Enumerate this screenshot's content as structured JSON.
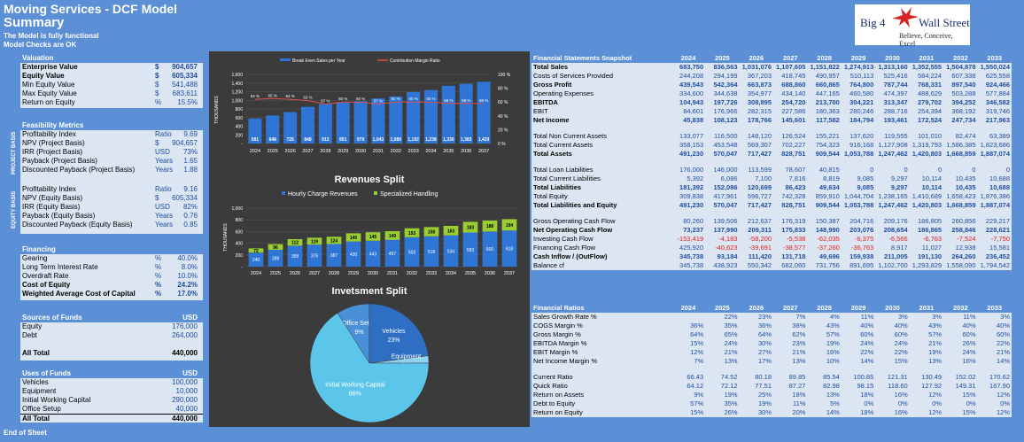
{
  "header": {
    "title": "Moving Services - DCF Model",
    "subtitle": "Summary",
    "note1": "The Model is fully functional",
    "note2": "Model Checks are OK"
  },
  "logo": {
    "left": "Big 4",
    "right": "Wall Street",
    "tagline": "Believe, Conceive, Excel"
  },
  "footer": "End of Sheet",
  "valuation": {
    "title": "Valuation",
    "rows": [
      {
        "label": "Enterprise Value",
        "unit": "$",
        "value": "904,657",
        "bold": true
      },
      {
        "label": "Equity Value",
        "unit": "$",
        "value": "605,334",
        "bold": true
      },
      {
        "label": "Min Equity Value",
        "unit": "$",
        "value": "541,488",
        "bold": false
      },
      {
        "label": "Max Equity Value",
        "unit": "$",
        "value": "683,611",
        "bold": false
      },
      {
        "label": "Return on Equity",
        "unit": "%",
        "value": "15.5%",
        "bold": false
      }
    ]
  },
  "feasibility": {
    "title": "Feasibility Metrics",
    "project_label": "PROJECT BASIS",
    "equity_label": "EQUITY BASIS",
    "project": [
      {
        "label": "Profitability Index",
        "unit": "Ratio",
        "value": "9.69"
      },
      {
        "label": "NPV (Project Basis)",
        "unit": "$",
        "value": "904,657"
      },
      {
        "label": "IRR (Project Basis)",
        "unit": "USD",
        "value": "73%"
      },
      {
        "label": "Payback  (Project Basis)",
        "unit": "Years",
        "value": "1.65"
      },
      {
        "label": "Discounted Payback  (Project Basis)",
        "unit": "Years",
        "value": "1.88"
      }
    ],
    "equity": [
      {
        "label": "Profitability Index",
        "unit": "Ratio",
        "value": "9.16"
      },
      {
        "label": "NPV (Equity Basis)",
        "unit": "$",
        "value": "605,334"
      },
      {
        "label": "IRR (Equity Basis)",
        "unit": "USD",
        "value": "82%"
      },
      {
        "label": "Payback  (Equity Basis)",
        "unit": "Years",
        "value": "0.76"
      },
      {
        "label": "Discounted Payback  (Equity Basis)",
        "unit": "Years",
        "value": "0.85"
      }
    ]
  },
  "financing": {
    "title": "Financing",
    "rows": [
      {
        "label": "Gearing",
        "unit": "%",
        "value": "40.0%",
        "bold": false
      },
      {
        "label": "Long Term Interest Rate",
        "unit": "%",
        "value": "8.0%",
        "bold": false
      },
      {
        "label": "Overdraft Rate",
        "unit": "%",
        "value": "10.0%",
        "bold": false
      },
      {
        "label": "Cost of Equity",
        "unit": "%",
        "value": "24.2%",
        "bold": true
      },
      {
        "label": "Weighted Average Cost of Capital",
        "unit": "%",
        "value": "17.0%",
        "bold": true
      }
    ]
  },
  "sources": {
    "title": "Sources of Funds",
    "currency": "USD",
    "rows": [
      {
        "label": "Equity",
        "value": "176,000"
      },
      {
        "label": "Debt",
        "value": "264,000"
      }
    ],
    "total_label": "All Total",
    "total": "440,000"
  },
  "uses": {
    "title": "Uses of Funds",
    "currency": "USD",
    "rows": [
      {
        "label": "Vehicles",
        "value": "100,000"
      },
      {
        "label": "Equipment",
        "value": "10,000"
      },
      {
        "label": "Initial Working Capital",
        "value": "290,000"
      },
      {
        "label": "Office Setup",
        "value": "40,000"
      }
    ],
    "total_label": "All Total",
    "total": "440,000"
  },
  "colors": {
    "accent": "#5b8fd6",
    "panel": "#dce6f3",
    "dark": "#3b3b3b",
    "bar_blue": "#2e75d6",
    "bar_green": "#9acd32",
    "line_red": "#e05050"
  },
  "chart_data": [
    {
      "type": "bar",
      "title": "",
      "ylabel": "THOUSANDS",
      "categories": [
        "2024",
        "2025",
        "2026",
        "2027",
        "2028",
        "2029",
        "2030",
        "2031",
        "2032",
        "2033",
        "2034",
        "2035",
        "2036",
        "2037"
      ],
      "series": [
        {
          "name": "Break Even Sales per Year",
          "values": [
            581,
            648,
            726,
            848,
            913,
            951,
            979,
            1043,
            1089,
            1192,
            1238,
            1336,
            1383,
            1429
          ],
          "labels": [
            "581",
            "648",
            "726",
            "848",
            "913",
            "951",
            "979",
            "1,043",
            "1,089",
            "1,192",
            "1,238",
            "1,336",
            "1,383",
            "1,429"
          ]
        },
        {
          "name": "Contribution Margin Ratio",
          "values": [
            64,
            65,
            64,
            62,
            57,
            60,
            60,
            57,
            60,
            60,
            60,
            58,
            58,
            58
          ],
          "labels": [
            "64 %",
            "65 %",
            "64 %",
            "62 %",
            "57 %",
            "60 %",
            "60 %",
            "57 %",
            "60 %",
            "60 %",
            "60 %",
            "58 %",
            "58 %",
            "58 %"
          ]
        }
      ],
      "ylim": [
        0,
        1600
      ],
      "yticks": [
        "1,600",
        "1,400",
        "1,200",
        "1,000",
        "800",
        "600",
        "400",
        "200",
        "-"
      ],
      "y2ticks": [
        "100 %",
        "80 %",
        "60 %",
        "40 %",
        "20 %",
        "0 %"
      ]
    },
    {
      "type": "bar",
      "title": "Revenues Split",
      "ylabel": "THOUSANDS",
      "categories": [
        "2024",
        "2025",
        "2026",
        "2027",
        "2028",
        "2029",
        "2030",
        "2031",
        "2032",
        "2033",
        "2034",
        "2035",
        "2036",
        "2037"
      ],
      "series": [
        {
          "name": "Hourly Charge Revenues",
          "values": [
            240,
            288,
            358,
            376,
            387,
            430,
            443,
            457,
            503,
            518,
            534,
            583,
            600,
            618
          ]
        },
        {
          "name": "Specialized Handling",
          "values": [
            72,
            96,
            112,
            119,
            124,
            140,
            145,
            149,
            153,
            158,
            163,
            183,
            188,
            194
          ]
        }
      ],
      "ylim": [
        0,
        1000
      ],
      "yticks": [
        "1,000",
        "800",
        "600",
        "400",
        "200",
        "-"
      ]
    },
    {
      "type": "pie",
      "title": "Invetsment Split",
      "labels": [
        "Office Setup",
        "Vehicles",
        "Equipment",
        "Initial Working Capital"
      ],
      "values": [
        9,
        23,
        2,
        66
      ],
      "value_labels": [
        "9%",
        "23%",
        "2%",
        "66%"
      ]
    }
  ],
  "snapshot": {
    "title": "Financial Statements Snapshot",
    "years": [
      "2024",
      "2025",
      "2026",
      "2027",
      "2028",
      "2029",
      "2030",
      "2031",
      "2032",
      "2033"
    ],
    "groups": [
      [
        {
          "label": "Total Sales",
          "b": true,
          "v": [
            "683,750",
            "836,563",
            "1,031,076",
            "1,107,605",
            "1,151,822",
            "1,274,913",
            "1,313,160",
            "1,352,555",
            "1,504,878",
            "1,550,024"
          ]
        },
        {
          "label": "Costs of Services Provided",
          "b": false,
          "v": [
            "244,208",
            "294,199",
            "367,203",
            "418,745",
            "490,957",
            "510,113",
            "525,416",
            "584,224",
            "607,338",
            "625,558"
          ]
        },
        {
          "label": "Gross Profit",
          "b": true,
          "v": [
            "439,543",
            "542,364",
            "663,873",
            "688,860",
            "660,865",
            "764,800",
            "787,744",
            "768,331",
            "897,540",
            "924,466"
          ]
        },
        {
          "label": "Operating Expenses",
          "b": false,
          "v": [
            "334,600",
            "344,638",
            "354,977",
            "434,140",
            "447,165",
            "460,580",
            "474,397",
            "488,629",
            "503,288",
            "577,884"
          ]
        },
        {
          "label": "EBITDA",
          "b": true,
          "v": [
            "104,943",
            "197,726",
            "308,895",
            "254,720",
            "213,700",
            "304,221",
            "313,347",
            "279,702",
            "394,252",
            "346,582"
          ]
        },
        {
          "label": "EBIT",
          "b": false,
          "v": [
            "84,601",
            "176,966",
            "282,315",
            "227,586",
            "180,363",
            "280,246",
            "288,716",
            "254,394",
            "368,192",
            "319,746"
          ]
        },
        {
          "label": "Net Income",
          "b": true,
          "v": [
            "45,838",
            "108,123",
            "178,766",
            "145,601",
            "117,582",
            "184,794",
            "193,461",
            "172,524",
            "247,734",
            "217,963"
          ]
        }
      ],
      [
        {
          "label": "Total Non Current Assets",
          "b": false,
          "v": [
            "133,077",
            "116,500",
            "148,120",
            "126,524",
            "155,221",
            "137,620",
            "119,555",
            "101,010",
            "82,474",
            "63,389"
          ]
        },
        {
          "label": "Total Current Assets",
          "b": false,
          "v": [
            "358,153",
            "453,548",
            "569,307",
            "702,227",
            "754,323",
            "916,168",
            "1,127,908",
            "1,319,793",
            "1,586,385",
            "1,823,686"
          ]
        },
        {
          "label": "Total Assets",
          "b": true,
          "v": [
            "491,230",
            "570,047",
            "717,427",
            "828,751",
            "909,544",
            "1,053,788",
            "1,247,462",
            "1,420,803",
            "1,668,859",
            "1,887,074"
          ]
        }
      ],
      [
        {
          "label": "Total Loan Liabilities",
          "b": false,
          "v": [
            "176,000",
            "146,000",
            "113,599",
            "78,607",
            "40,815",
            "0",
            "0",
            "0",
            "0",
            "0"
          ]
        },
        {
          "label": "Total Current Liabilities",
          "b": false,
          "v": [
            "5,392",
            "6,086",
            "7,100",
            "7,816",
            "8,819",
            "9,085",
            "9,297",
            "10,114",
            "10,435",
            "10,688"
          ]
        },
        {
          "label": "Total Liabilities",
          "b": true,
          "v": [
            "181,392",
            "152,086",
            "120,699",
            "86,423",
            "49,634",
            "9,085",
            "9,297",
            "10,114",
            "10,435",
            "10,688"
          ]
        },
        {
          "label": "Total Equity",
          "b": false,
          "v": [
            "309,838",
            "417,961",
            "596,727",
            "742,328",
            "859,910",
            "1,044,704",
            "1,238,165",
            "1,410,689",
            "1,658,423",
            "1,876,386"
          ]
        },
        {
          "label": "Total Liabilities and Equity",
          "b": true,
          "v": [
            "491,230",
            "570,047",
            "717,427",
            "828,751",
            "909,544",
            "1,053,788",
            "1,247,462",
            "1,420,803",
            "1,668,859",
            "1,887,074"
          ]
        }
      ],
      [
        {
          "label": "Gross Operating Cash Flow",
          "b": false,
          "v": [
            "80,260",
            "139,506",
            "212,637",
            "176,319",
            "150,387",
            "204,716",
            "209,176",
            "186,805",
            "260,856",
            "229,217"
          ]
        },
        {
          "label": "Net Operating Cash Flow",
          "b": true,
          "v": [
            "73,237",
            "137,990",
            "209,311",
            "175,833",
            "148,990",
            "203,076",
            "208,654",
            "186,865",
            "258,846",
            "228,621"
          ]
        },
        {
          "label": "Investing Cash Flow",
          "b": false,
          "v": [
            "-153,419",
            "-4,183",
            "-58,200",
            "-5,538",
            "-62,035",
            "-6,375",
            "-6,566",
            "-6,763",
            "-7,524",
            "-7,750"
          ]
        },
        {
          "label": "Financing Cash Flow",
          "b": false,
          "v": [
            "425,920",
            "-40,623",
            "-39,691",
            "-38,577",
            "-37,260",
            "-36,763",
            "8,917",
            "11,027",
            "12,938",
            "15,581"
          ]
        },
        {
          "label": "Cash Inflow / (OutFlow)",
          "b": true,
          "v": [
            "345,738",
            "93,184",
            "111,420",
            "131,718",
            "49,696",
            "159,938",
            "211,005",
            "191,130",
            "264,260",
            "236,452"
          ]
        },
        {
          "label": "Balance cf",
          "b": false,
          "v": [
            "345,738",
            "438,923",
            "550,342",
            "682,060",
            "731,756",
            "891,695",
            "1,102,700",
            "1,293,829",
            "1,558,090",
            "1,794,542"
          ]
        }
      ]
    ]
  },
  "ratios": {
    "title": "Financial Ratios",
    "years": [
      "2024",
      "2025",
      "2026",
      "2027",
      "2028",
      "2029",
      "2030",
      "2031",
      "2032",
      "2033"
    ],
    "groups": [
      [
        {
          "label": "Sales Growth Rate %",
          "v": [
            "",
            "22%",
            "23%",
            "7%",
            "4%",
            "11%",
            "3%",
            "3%",
            "11%",
            "3%"
          ]
        },
        {
          "label": "COGS Margin %",
          "v": [
            "36%",
            "35%",
            "36%",
            "38%",
            "43%",
            "40%",
            "40%",
            "43%",
            "40%",
            "40%"
          ]
        },
        {
          "label": "Gross Margin %",
          "v": [
            "64%",
            "65%",
            "64%",
            "62%",
            "57%",
            "60%",
            "60%",
            "57%",
            "60%",
            "60%"
          ]
        },
        {
          "label": "EBITDA Margin %",
          "v": [
            "15%",
            "24%",
            "30%",
            "23%",
            "19%",
            "24%",
            "24%",
            "21%",
            "26%",
            "22%"
          ]
        },
        {
          "label": "EBIT Margin %",
          "v": [
            "12%",
            "21%",
            "27%",
            "21%",
            "16%",
            "22%",
            "22%",
            "19%",
            "24%",
            "21%"
          ]
        },
        {
          "label": "Net Income Margin %",
          "v": [
            "7%",
            "13%",
            "17%",
            "13%",
            "10%",
            "14%",
            "15%",
            "13%",
            "16%",
            "14%"
          ]
        }
      ],
      [
        {
          "label": "Current Ratio",
          "v": [
            "66.43",
            "74.52",
            "80.18",
            "89.85",
            "85.54",
            "100.85",
            "121.31",
            "130.49",
            "152.02",
            "170.62"
          ]
        },
        {
          "label": "Quick Ratio",
          "v": [
            "64.12",
            "72.12",
            "77.51",
            "87.27",
            "82.98",
            "98.15",
            "118.60",
            "127.92",
            "149.31",
            "167.90"
          ]
        },
        {
          "label": "Return on Assets",
          "v": [
            "9%",
            "19%",
            "25%",
            "18%",
            "13%",
            "18%",
            "16%",
            "12%",
            "15%",
            "12%"
          ]
        },
        {
          "label": "Debt to Equity",
          "v": [
            "57%",
            "35%",
            "19%",
            "11%",
            "5%",
            "0%",
            "0%",
            "0%",
            "0%",
            "0%"
          ]
        },
        {
          "label": "Return on Equity",
          "v": [
            "15%",
            "26%",
            "30%",
            "20%",
            "14%",
            "18%",
            "16%",
            "12%",
            "15%",
            "12%"
          ]
        }
      ]
    ]
  }
}
